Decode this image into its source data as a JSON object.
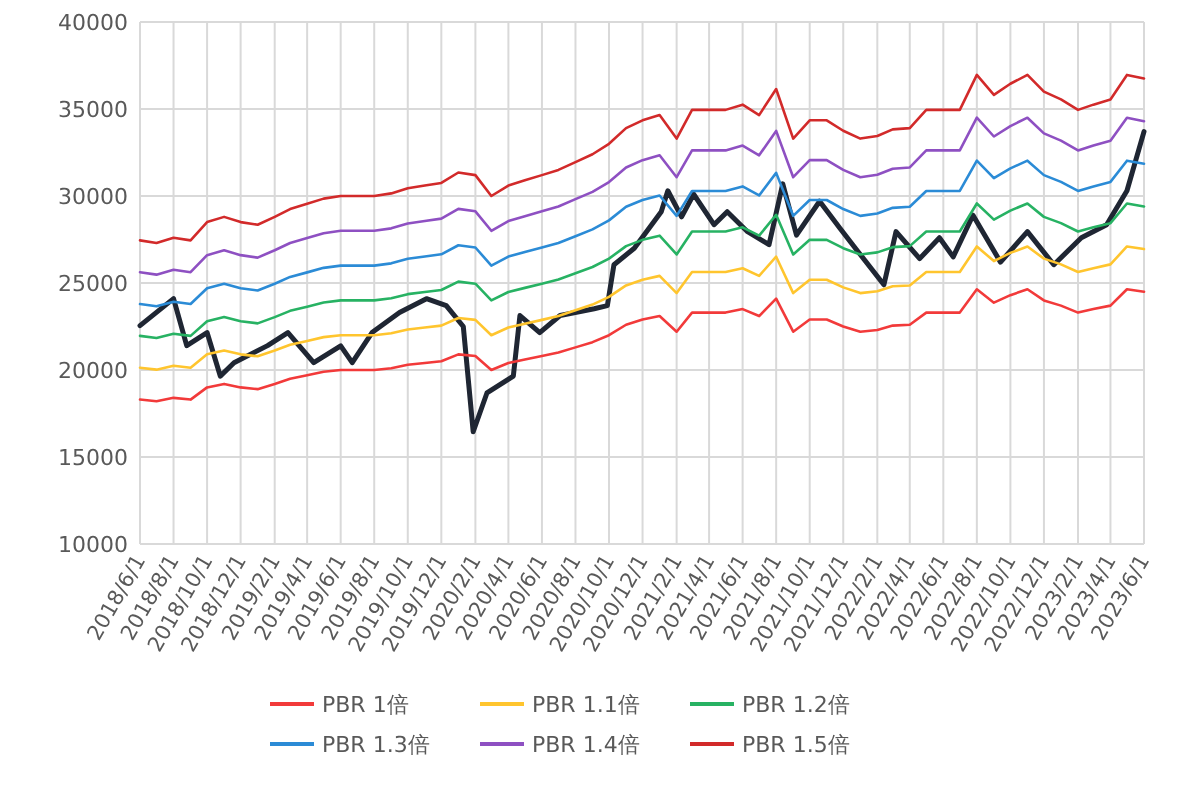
{
  "chart_data": {
    "type": "line",
    "legend": "bottom",
    "grid": true,
    "line_style": "solid",
    "ylim": [
      10000,
      40000
    ],
    "yticks": [
      10000,
      15000,
      20000,
      25000,
      30000,
      35000,
      40000
    ],
    "xlim": [
      "2018-06-01",
      "2023-06-01"
    ],
    "xticks": [
      {
        "value": "2018-06-01",
        "label": "2018/6/1"
      },
      {
        "value": "2018-08-01",
        "label": "2018/8/1"
      },
      {
        "value": "2018-10-01",
        "label": "2018/10/1"
      },
      {
        "value": "2018-12-01",
        "label": "2018/12/1"
      },
      {
        "value": "2019-02-01",
        "label": "2019/2/1"
      },
      {
        "value": "2019-04-01",
        "label": "2019/4/1"
      },
      {
        "value": "2019-06-01",
        "label": "2019/6/1"
      },
      {
        "value": "2019-08-01",
        "label": "2019/8/1"
      },
      {
        "value": "2019-10-01",
        "label": "2019/10/1"
      },
      {
        "value": "2019-12-01",
        "label": "2019/12/1"
      },
      {
        "value": "2020-02-01",
        "label": "2020/2/1"
      },
      {
        "value": "2020-04-01",
        "label": "2020/4/1"
      },
      {
        "value": "2020-06-01",
        "label": "2020/6/1"
      },
      {
        "value": "2020-08-01",
        "label": "2020/8/1"
      },
      {
        "value": "2020-10-01",
        "label": "2020/10/1"
      },
      {
        "value": "2020-12-01",
        "label": "2020/12/1"
      },
      {
        "value": "2021-02-01",
        "label": "2021/2/1"
      },
      {
        "value": "2021-04-01",
        "label": "2021/4/1"
      },
      {
        "value": "2021-06-01",
        "label": "2021/6/1"
      },
      {
        "value": "2021-08-01",
        "label": "2021/8/1"
      },
      {
        "value": "2021-10-01",
        "label": "2021/10/1"
      },
      {
        "value": "2021-12-01",
        "label": "2021/12/1"
      },
      {
        "value": "2022-02-01",
        "label": "2022/2/1"
      },
      {
        "value": "2022-04-01",
        "label": "2022/4/1"
      },
      {
        "value": "2022-06-01",
        "label": "2022/6/1"
      },
      {
        "value": "2022-08-01",
        "label": "2022/8/1"
      },
      {
        "value": "2022-10-01",
        "label": "2022/10/1"
      },
      {
        "value": "2022-12-01",
        "label": "2022/12/1"
      },
      {
        "value": "2023-02-01",
        "label": "2023/2/1"
      },
      {
        "value": "2023-04-01",
        "label": "2023/4/1"
      },
      {
        "value": "2023-06-01",
        "label": "2023/6/1"
      }
    ],
    "x": [
      "2018-06-01",
      "2018-07-01",
      "2018-08-01",
      "2018-09-01",
      "2018-10-01",
      "2018-11-01",
      "2018-12-01",
      "2019-01-01",
      "2019-02-01",
      "2019-03-01",
      "2019-04-01",
      "2019-05-01",
      "2019-06-01",
      "2019-07-01",
      "2019-08-01",
      "2019-09-01",
      "2019-10-01",
      "2019-11-01",
      "2019-12-01",
      "2020-01-01",
      "2020-02-01",
      "2020-03-01",
      "2020-04-01",
      "2020-05-01",
      "2020-06-01",
      "2020-07-01",
      "2020-08-01",
      "2020-09-01",
      "2020-10-01",
      "2020-11-01",
      "2020-12-01",
      "2021-01-01",
      "2021-02-01",
      "2021-03-01",
      "2021-04-01",
      "2021-05-01",
      "2021-06-01",
      "2021-07-01",
      "2021-08-01",
      "2021-09-01",
      "2021-10-01",
      "2021-11-01",
      "2021-12-01",
      "2022-01-01",
      "2022-02-01",
      "2022-03-01",
      "2022-04-01",
      "2022-05-01",
      "2022-06-01",
      "2022-07-01",
      "2022-08-01",
      "2022-09-01",
      "2022-10-01",
      "2022-11-01",
      "2022-12-01",
      "2023-01-01",
      "2023-02-01",
      "2023-03-01",
      "2023-04-01",
      "2023-05-01",
      "2023-06-01"
    ],
    "series": [
      {
        "color": "#1f2633",
        "x": [
          "2018-06-01",
          "2018-08-01",
          "2018-08-25",
          "2018-10-01",
          "2018-10-25",
          "2018-11-19",
          "2019-01-19",
          "2019-02-25",
          "2019-04-13",
          "2019-06-01",
          "2019-06-22",
          "2019-07-28",
          "2019-09-16",
          "2019-11-04",
          "2019-12-10",
          "2020-01-10",
          "2020-01-28",
          "2020-02-22",
          "2020-04-10",
          "2020-04-22",
          "2020-05-28",
          "2020-07-04",
          "2020-09-04",
          "2020-09-28",
          "2020-10-10",
          "2020-11-16",
          "2021-01-04",
          "2021-01-16",
          "2021-02-10",
          "2021-03-04",
          "2021-04-10",
          "2021-05-04",
          "2021-06-10",
          "2021-07-19",
          "2021-08-13",
          "2021-09-07",
          "2021-10-19",
          "2021-11-25",
          "2021-12-28",
          "2022-02-13",
          "2022-03-07",
          "2022-04-19",
          "2022-05-25",
          "2022-06-19",
          "2022-07-25",
          "2022-09-13",
          "2022-11-01",
          "2022-12-19",
          "2023-02-07",
          "2023-03-25",
          "2023-05-01",
          "2023-06-01"
        ],
        "values": [
          22550,
          24100,
          21400,
          22150,
          19650,
          20420,
          21400,
          22150,
          20420,
          21390,
          20420,
          22150,
          23300,
          24100,
          23700,
          22500,
          16450,
          18680,
          19650,
          23130,
          22150,
          23130,
          23520,
          23700,
          26050,
          27000,
          29100,
          30300,
          28800,
          30100,
          28350,
          29100,
          27950,
          27200,
          30700,
          27750,
          29700,
          28150,
          26800,
          24900,
          27950,
          26400,
          27600,
          26500,
          28900,
          26200,
          27950,
          26050,
          27600,
          28350,
          30300,
          33700
        ]
      },
      {
        "name": "PBR 1倍",
        "color": "#f23a3a",
        "values": [
          18300,
          18200,
          18400,
          18300,
          19000,
          19200,
          19000,
          18900,
          19200,
          19500,
          19700,
          19900,
          20000,
          20000,
          20000,
          20100,
          20300,
          20400,
          20500,
          20900,
          20800,
          20000,
          20400,
          20600,
          20800,
          21000,
          21300,
          21600,
          22000,
          22600,
          22900,
          23100,
          22200,
          23300,
          23300,
          23300,
          23500,
          23100,
          24100,
          22200,
          22900,
          22900,
          22500,
          22200,
          22300,
          22550,
          22600,
          23300,
          23300,
          23300,
          24640,
          23870,
          24300,
          24640,
          24000,
          23700,
          23300,
          23500,
          23700,
          24640,
          24500
        ]
      },
      {
        "name": "PBR 1.1倍",
        "color": "#ffc52e",
        "values": [
          20130,
          20020,
          20240,
          20130,
          20900,
          21120,
          20900,
          20790,
          21120,
          21450,
          21670,
          21890,
          22000,
          22000,
          22000,
          22110,
          22330,
          22440,
          22550,
          22990,
          22880,
          22000,
          22440,
          22660,
          22880,
          23100,
          23430,
          23760,
          24200,
          24860,
          25190,
          25410,
          24420,
          25630,
          25630,
          25630,
          25850,
          25410,
          26510,
          24420,
          25190,
          25190,
          24750,
          24420,
          24530,
          24810,
          24860,
          25630,
          25630,
          25630,
          27100,
          26260,
          26730,
          27100,
          26400,
          26070,
          25630,
          25850,
          26070,
          27100,
          26950
        ]
      },
      {
        "name": "PBR 1.2倍",
        "color": "#27b263",
        "values": [
          21960,
          21840,
          22080,
          21960,
          22800,
          23040,
          22800,
          22680,
          23040,
          23400,
          23640,
          23880,
          24000,
          24000,
          24000,
          24120,
          24360,
          24480,
          24600,
          25080,
          24960,
          24000,
          24480,
          24720,
          24960,
          25200,
          25560,
          25920,
          26400,
          27120,
          27480,
          27720,
          26640,
          27960,
          27960,
          27960,
          28200,
          27720,
          28920,
          26640,
          27480,
          27480,
          27000,
          26640,
          26760,
          27060,
          27120,
          27960,
          27960,
          27960,
          29570,
          28640,
          29160,
          29570,
          28800,
          28440,
          27960,
          28200,
          28440,
          29570,
          29400
        ]
      },
      {
        "name": "PBR 1.3倍",
        "color": "#2b8bd6",
        "values": [
          23790,
          23660,
          23920,
          23790,
          24700,
          24960,
          24700,
          24570,
          24960,
          25350,
          25610,
          25870,
          26000,
          26000,
          26000,
          26130,
          26390,
          26520,
          26650,
          27170,
          27040,
          26000,
          26520,
          26780,
          27040,
          27300,
          27690,
          28080,
          28600,
          29380,
          29770,
          30030,
          28860,
          30290,
          30290,
          30290,
          30550,
          30030,
          31330,
          28860,
          29770,
          29770,
          29250,
          28860,
          28990,
          29320,
          29380,
          30290,
          30290,
          30290,
          32030,
          31030,
          31590,
          32030,
          31200,
          30810,
          30290,
          30550,
          30810,
          32030,
          31850
        ]
      },
      {
        "name": "PBR 1.4倍",
        "color": "#8e50c2",
        "values": [
          25620,
          25480,
          25760,
          25620,
          26600,
          26880,
          26600,
          26460,
          26880,
          27300,
          27580,
          27860,
          28000,
          28000,
          28000,
          28140,
          28420,
          28560,
          28700,
          29260,
          29120,
          28000,
          28560,
          28840,
          29120,
          29400,
          29820,
          30240,
          30800,
          31640,
          32060,
          32340,
          31080,
          32620,
          32620,
          32620,
          32900,
          32340,
          33740,
          31080,
          32060,
          32060,
          31500,
          31080,
          31220,
          31570,
          31640,
          32620,
          32620,
          32620,
          34500,
          33420,
          34020,
          34500,
          33600,
          33180,
          32620,
          32900,
          33180,
          34500,
          34300
        ]
      },
      {
        "name": "PBR 1.5倍",
        "color": "#d22a2a",
        "values": [
          27450,
          27300,
          27600,
          27450,
          28500,
          28800,
          28500,
          28350,
          28800,
          29250,
          29550,
          29850,
          30000,
          30000,
          30000,
          30150,
          30450,
          30600,
          30750,
          31350,
          31200,
          30000,
          30600,
          30900,
          31200,
          31500,
          31950,
          32400,
          33000,
          33900,
          34350,
          34650,
          33300,
          34950,
          34950,
          34950,
          35250,
          34650,
          36150,
          33300,
          34350,
          34350,
          33750,
          33300,
          33450,
          33830,
          33900,
          34950,
          34950,
          34950,
          36960,
          35810,
          36450,
          36960,
          36000,
          35550,
          34950,
          35250,
          35550,
          36960,
          36750
        ]
      }
    ]
  }
}
